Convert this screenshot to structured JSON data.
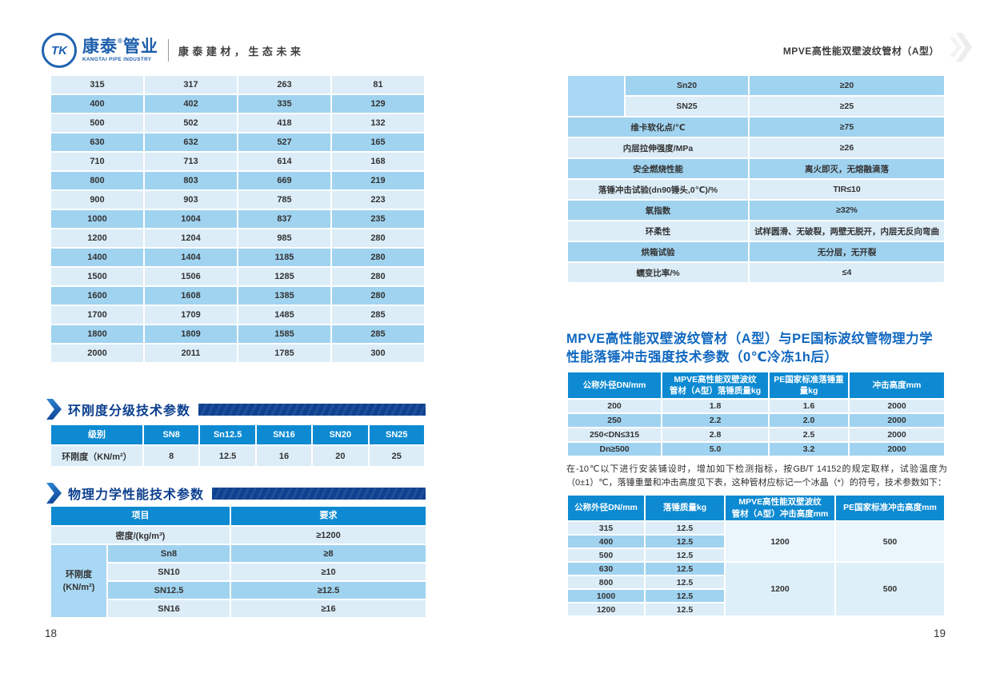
{
  "colors": {
    "header_blue": "#0d8ad2",
    "row_light": "#dcedf8",
    "row_dark": "#a0d3f0",
    "label_blue": "#a9d8f4",
    "banner_navy": "#0e418f",
    "section_title_navy": "#0c3f8e",
    "impact_title_blue": "#1168c0",
    "brand_blue": "#1e5fab"
  },
  "brand": {
    "tk_monogram": "TK",
    "name1": "康泰",
    "reg": "®",
    "name2": "管业",
    "subtitle": "KANGTAI PIPE INDUSTRY",
    "tagline": "康泰建材，生态未来"
  },
  "page_header": {
    "title": "MPVE高性能双壁波纹管材（A型）"
  },
  "pages": {
    "left_number": "18",
    "right_number": "19"
  },
  "dimension_table": {
    "rows": [
      [
        "315",
        "317",
        "263",
        "81"
      ],
      [
        "400",
        "402",
        "335",
        "129"
      ],
      [
        "500",
        "502",
        "418",
        "132"
      ],
      [
        "630",
        "632",
        "527",
        "165"
      ],
      [
        "710",
        "713",
        "614",
        "168"
      ],
      [
        "800",
        "803",
        "669",
        "219"
      ],
      [
        "900",
        "903",
        "785",
        "223"
      ],
      [
        "1000",
        "1004",
        "837",
        "235"
      ],
      [
        "1200",
        "1204",
        "985",
        "280"
      ],
      [
        "1400",
        "1404",
        "1185",
        "280"
      ],
      [
        "1500",
        "1506",
        "1285",
        "280"
      ],
      [
        "1600",
        "1608",
        "1385",
        "280"
      ],
      [
        "1700",
        "1709",
        "1485",
        "285"
      ],
      [
        "1800",
        "1809",
        "1585",
        "285"
      ],
      [
        "2000",
        "2011",
        "1785",
        "300"
      ]
    ]
  },
  "ring_class_section": {
    "title": "环刚度分级技术参数",
    "headers": [
      "级别",
      "SN8",
      "Sn12.5",
      "SN16",
      "SN20",
      "SN25"
    ],
    "row_label": "环刚度（KN/m²）",
    "values": [
      "8",
      "12.5",
      "16",
      "20",
      "25"
    ]
  },
  "physical_section": {
    "title": "物理力学性能技术参数",
    "col_item": "项目",
    "col_req": "要求",
    "density_label": "密度/(kg/m³)",
    "density_value": "≥1200",
    "ring_label": "环刚度\n(KN/m²)",
    "rows": [
      {
        "grade": "Sn8",
        "req": "≥8"
      },
      {
        "grade": "SN10",
        "req": "≥10"
      },
      {
        "grade": "SN12.5",
        "req": "≥12.5"
      },
      {
        "grade": "SN16",
        "req": "≥16"
      }
    ]
  },
  "physical_cont": {
    "ring_rows": [
      {
        "grade": "Sn20",
        "req": "≥20"
      },
      {
        "grade": "SN25",
        "req": "≥25"
      }
    ],
    "rows": [
      {
        "item": "维卡软化点/℃",
        "req": "≥75"
      },
      {
        "item": "内层拉伸强度/MPa",
        "req": "≥26"
      },
      {
        "item": "安全燃烧性能",
        "req": "离火即灭，无熔融滴落"
      },
      {
        "item": "落锤冲击试验(dn90锤头,0℃)/%",
        "req": "TIR≤10"
      },
      {
        "item": "氧指数",
        "req": "≥32%"
      },
      {
        "item": "环柔性",
        "req": "试样圆滑、无破裂，两壁无脱开，内层无反向弯曲"
      },
      {
        "item": "烘箱试验",
        "req": "无分层，无开裂"
      },
      {
        "item": "蠕变比率/%",
        "req": "≤4"
      }
    ]
  },
  "impact_section": {
    "title": "MPVE高性能双壁波纹管材（A型）与PE国标波纹管物理力学\n性能落锤冲击强度技术参数（0℃冷冻1h后）",
    "headers": [
      "公称外径DN/mm",
      "MPVE高性能双壁波纹\n管材（A型）落锤质量kg",
      "PE国家标准落锤重量kg",
      "冲击高度mm"
    ],
    "rows": [
      [
        "200",
        "1.8",
        "1.6",
        "2000"
      ],
      [
        "250",
        "2.2",
        "2.0",
        "2000"
      ],
      [
        "250<DN≤315",
        "2.8",
        "2.5",
        "2000"
      ],
      [
        "Dn≥500",
        "5.0",
        "3.2",
        "2000"
      ]
    ],
    "note": "在-10℃以下进行安装铺设时，增加如下检测指标，按GB/T 14152的规定取样，试验温度为（0±1）℃，落锤重量和冲击高度见下表，这种管材应标记一个冰晶（*）的符号，技术参数如下："
  },
  "cold_impact_table": {
    "headers": [
      "公称外径DN/mm",
      "落锤质量kg",
      "MPVE高性能双壁波纹\n管材（A型）冲击高度mm",
      "PE国家标准冲击高度mm"
    ],
    "group1": {
      "rows": [
        [
          "315",
          "12.5"
        ],
        [
          "400",
          "12.5"
        ],
        [
          "500",
          "12.5"
        ]
      ],
      "mpve_height": "1200",
      "pe_height": "500"
    },
    "group2": {
      "rows": [
        [
          "630",
          "12.5"
        ],
        [
          "800",
          "12.5"
        ],
        [
          "1000",
          "12.5"
        ],
        [
          "1200",
          "12.5"
        ]
      ],
      "mpve_height": "1200",
      "pe_height": "500"
    }
  }
}
